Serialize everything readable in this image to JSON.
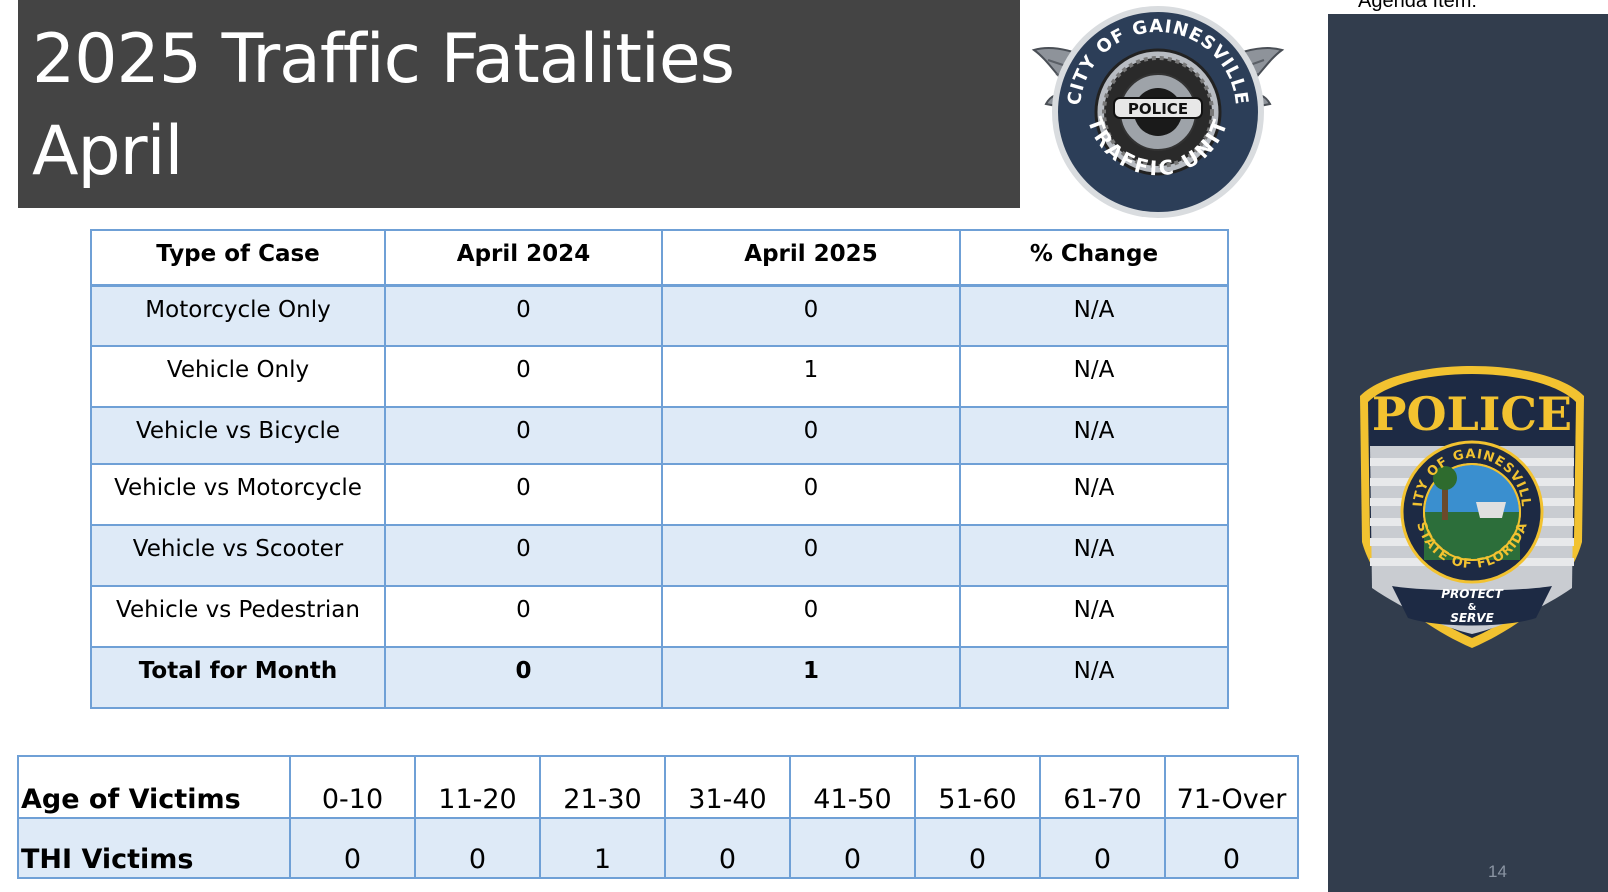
{
  "title": {
    "line1": "2025 Traffic Fatalities",
    "line2": "April"
  },
  "logo_traffic_unit": {
    "top_text": "CITY OF GAINESVILLE",
    "center_text": "POLICE",
    "bottom_text": "TRAFFIC UNIT"
  },
  "badge": {
    "top_text": "POLICE",
    "ring_top": "CITY OF GAINESVILLE",
    "ring_bottom": "STATE OF FLORIDA",
    "motto_1": "PROTECT",
    "motto_2": "&",
    "motto_3": "SERVE"
  },
  "side_panel": {
    "agenda_note": "Agenda Item:",
    "page_number": "14"
  },
  "case_table": {
    "headers": [
      "Type of Case",
      "April 2024",
      "April 2025",
      "% Change"
    ],
    "rows": [
      [
        "Motorcycle Only",
        "0",
        "0",
        "N/A"
      ],
      [
        "Vehicle Only",
        "0",
        "1",
        "N/A"
      ],
      [
        "Vehicle vs Bicycle",
        "0",
        "0",
        "N/A"
      ],
      [
        "Vehicle vs Motorcycle",
        "0",
        "0",
        "N/A"
      ],
      [
        "Vehicle vs Scooter",
        "0",
        "0",
        "N/A"
      ],
      [
        "Vehicle vs Pedestrian",
        "0",
        "0",
        "N/A"
      ],
      [
        "Total for Month",
        "0",
        "1",
        "N/A"
      ]
    ]
  },
  "age_table": {
    "header_label": "Age of Victims",
    "age_groups": [
      "0-10",
      "11-20",
      "21-30",
      "31-40",
      "41-50",
      "51-60",
      "61-70",
      "71-Over"
    ],
    "row_label": "THI Victims",
    "counts": [
      "0",
      "0",
      "1",
      "0",
      "0",
      "0",
      "0",
      "0"
    ]
  },
  "colors": {
    "title_bg": "#444444",
    "panel_bg": "#323d4d",
    "table_border": "#6fa0d6",
    "table_stripe": "#deeaf7",
    "badge_gold": "#f2c230",
    "badge_navy": "#1d2a44"
  }
}
